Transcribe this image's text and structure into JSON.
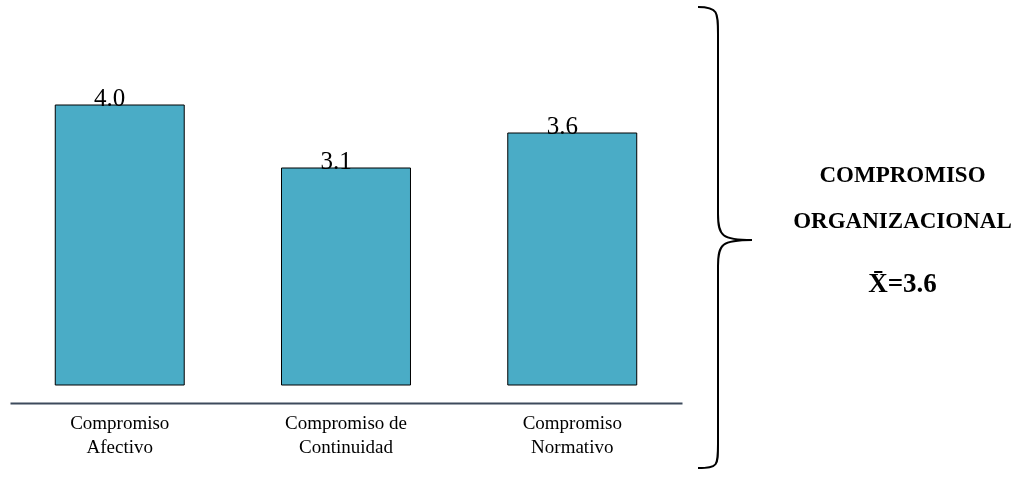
{
  "chart_data": {
    "type": "bar",
    "categories": [
      "Compromiso Afectivo",
      "Compromiso de Continuidad",
      "Compromiso Normativo"
    ],
    "values": [
      4.0,
      3.1,
      3.6
    ],
    "color": "#4aacc6",
    "value_labels": [
      "4.0",
      "3.1",
      "3.6"
    ],
    "tick_labels": "x",
    "annotations": [
      "COMPROMISO ORGANIZACIONAL",
      "X̄=3.6"
    ]
  }
}
